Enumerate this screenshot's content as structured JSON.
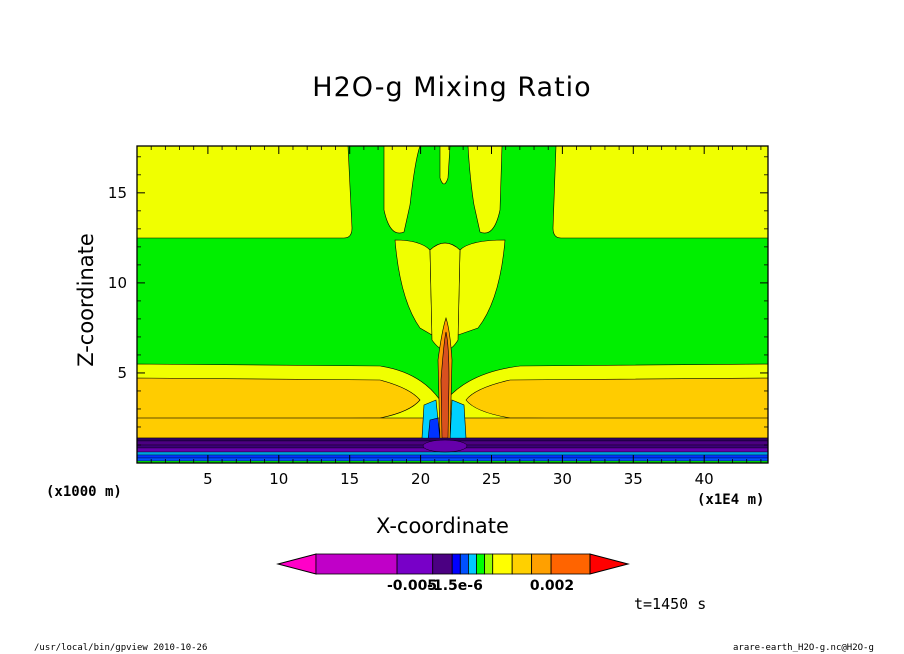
{
  "chart_data": {
    "type": "heatmap",
    "title": "H2O-g Mixing Ratio",
    "xlabel": "X-coordinate",
    "ylabel": "Z-coordinate",
    "x_unit_label": "(x1E4 m)",
    "y_unit_label": "(x1000 m)",
    "xlim": [
      0,
      44.5
    ],
    "ylim": [
      0,
      17.6
    ],
    "x_ticks": [
      "5",
      "10",
      "15",
      "20",
      "25",
      "30",
      "35",
      "40"
    ],
    "y_ticks": [
      "5",
      "10",
      "15"
    ],
    "colorbar": {
      "colors": [
        "#ff00c8",
        "#c000c8",
        "#7800c8",
        "#4b0082",
        "#0000ff",
        "#0050ff",
        "#00c8ff",
        "#00ff00",
        "#96ff00",
        "#ffff00",
        "#ffd000",
        "#ffa000",
        "#ff6400",
        "#ff0000"
      ],
      "tick_labels": [
        "-0.005",
        "-1.5e-6",
        "0.002"
      ]
    },
    "annotation": "t=1450 s",
    "colors": {
      "green": "#00ef00",
      "yellow": "#f0ff00",
      "gold": "#ffcc00",
      "orange": "#ff9900",
      "red": "#d85020",
      "purple": "#6600aa",
      "blue": "#0033ff",
      "cyan": "#00d0ff"
    }
  },
  "footer": {
    "left": "/usr/local/bin/gpview  2010-10-26",
    "right": "arare-earth_H2O-g.nc@H2O-g"
  }
}
